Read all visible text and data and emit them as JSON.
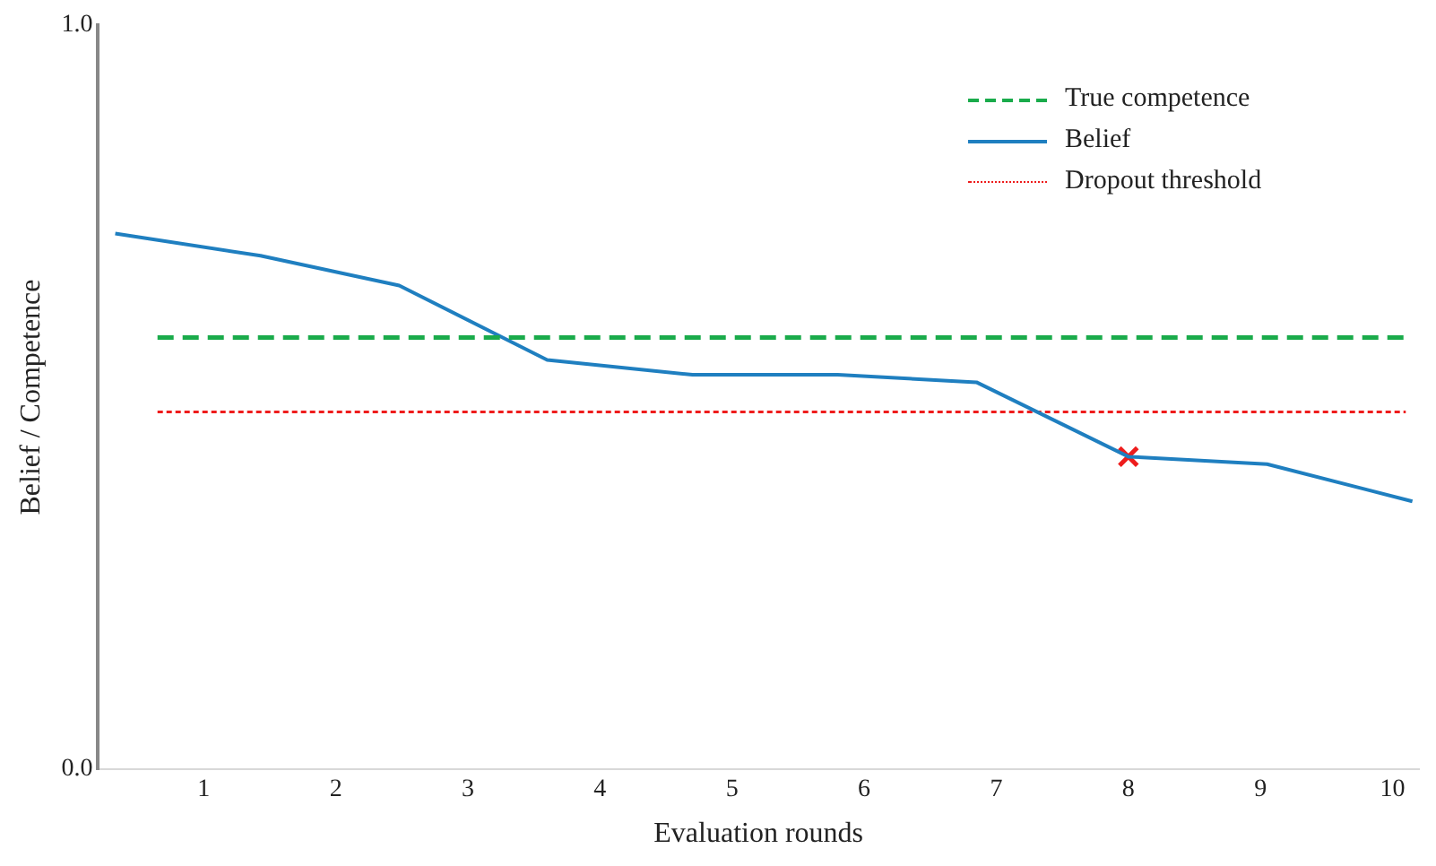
{
  "chart_data": {
    "type": "line",
    "xlabel": "Evaluation rounds",
    "ylabel": "Belief / Competence",
    "xlim": [
      0.2,
      10.2
    ],
    "xticks": [
      1,
      2,
      3,
      4,
      5,
      6,
      7,
      8,
      9,
      10
    ],
    "ylim": [
      0,
      1
    ],
    "yticks": [
      {
        "value": 0,
        "label": "0.0"
      },
      {
        "value": 1,
        "label": "1.0"
      }
    ],
    "grid": false,
    "legend": "top right",
    "marker": "none",
    "series": [
      {
        "name": "True competence",
        "color": "#1aab4b",
        "line_style": "dashed",
        "x": [
          0.65,
          10.1
        ],
        "values": [
          0.58,
          0.58
        ]
      },
      {
        "name": "Belief",
        "color": "#1f7fc0",
        "line_style": "solid",
        "x": [
          0.33,
          1.43,
          2.48,
          3.6,
          4.7,
          5.8,
          6.85,
          8,
          9.05,
          10.15
        ],
        "values": [
          0.72,
          0.69,
          0.65,
          0.55,
          0.53,
          0.53,
          0.52,
          0.42,
          0.41,
          0.36
        ]
      },
      {
        "name": "Dropout threshold",
        "color": "#ee1c1c",
        "line_style": "dotted",
        "x": [
          0.65,
          10.1
        ],
        "values": [
          0.48,
          0.48
        ]
      },
      {
        "type": "scatter",
        "color": "#ee1c1c",
        "marker": "cross",
        "x": [
          8
        ],
        "values": [
          0.42
        ]
      }
    ]
  }
}
